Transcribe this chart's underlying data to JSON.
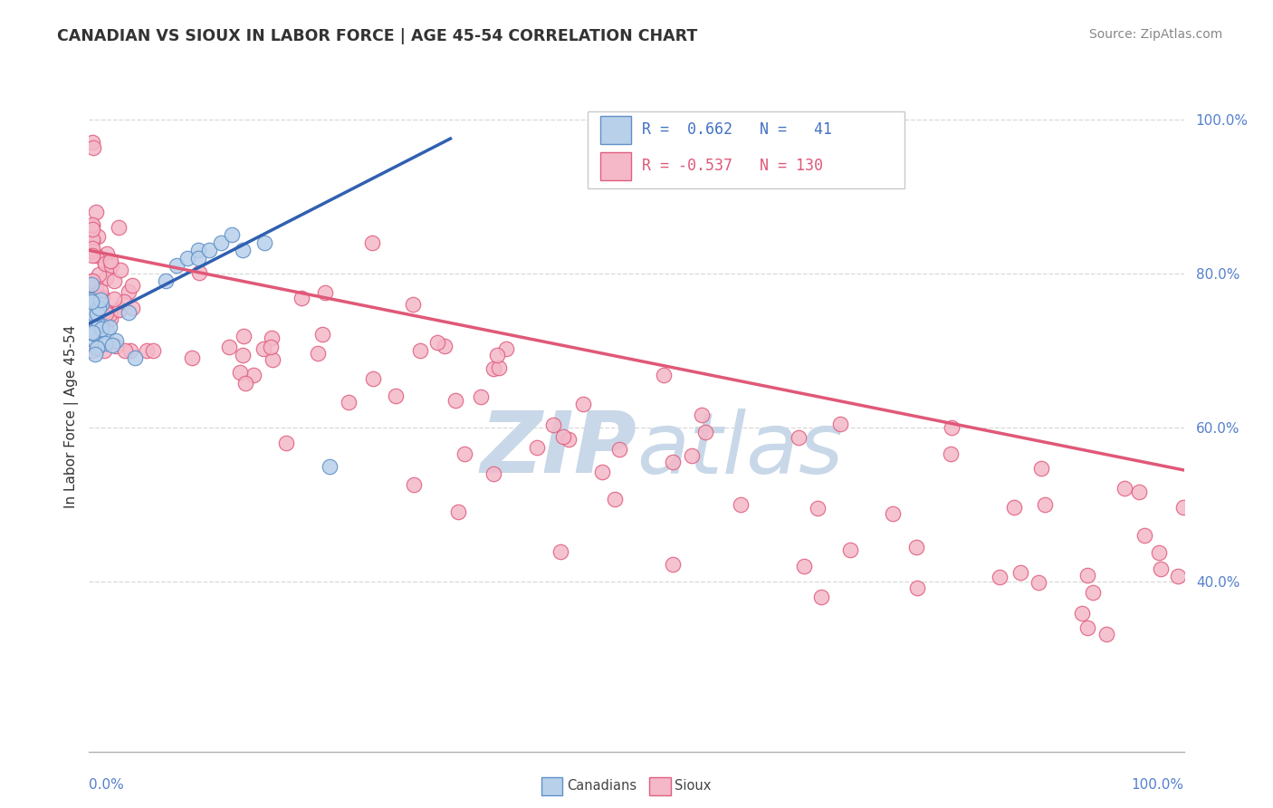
{
  "title": "CANADIAN VS SIOUX IN LABOR FORCE | AGE 45-54 CORRELATION CHART",
  "source": "Source: ZipAtlas.com",
  "ylabel": "In Labor Force | Age 45-54",
  "legend_canadians": "Canadians",
  "legend_sioux": "Sioux",
  "r_canadians": 0.662,
  "n_canadians": 41,
  "r_sioux": -0.537,
  "n_sioux": 130,
  "canadians_fill": "#b8d0ea",
  "canadians_edge": "#6090c8",
  "sioux_fill": "#f4b8c8",
  "sioux_edge": "#e06080",
  "blue_line_color": "#3060b0",
  "pink_line_color": "#e05878",
  "background_color": "#ffffff",
  "watermark_color": "#c8d8e8",
  "ytick_color": "#5580cc",
  "xtick_color": "#5580cc",
  "grid_color": "#d8d8d8",
  "title_color": "#333333",
  "source_color": "#888888",
  "ylabel_color": "#333333",
  "legend_text_color_blue": "#4472c4",
  "legend_text_color_pink": "#e05878",
  "ylim_min": 0.18,
  "ylim_max": 1.05,
  "xlim_min": 0.0,
  "xlim_max": 1.0,
  "yticks": [
    1.0,
    0.8,
    0.6,
    0.4
  ],
  "ytick_labels": [
    "100.0%",
    "80.0%",
    "60.0%",
    "40.0%"
  ],
  "can_line_x0": 0.0,
  "can_line_x1": 0.33,
  "can_line_y0": 0.735,
  "can_line_y1": 0.975,
  "sioux_line_x0": 0.0,
  "sioux_line_x1": 1.0,
  "sioux_line_y0": 0.83,
  "sioux_line_y1": 0.545
}
